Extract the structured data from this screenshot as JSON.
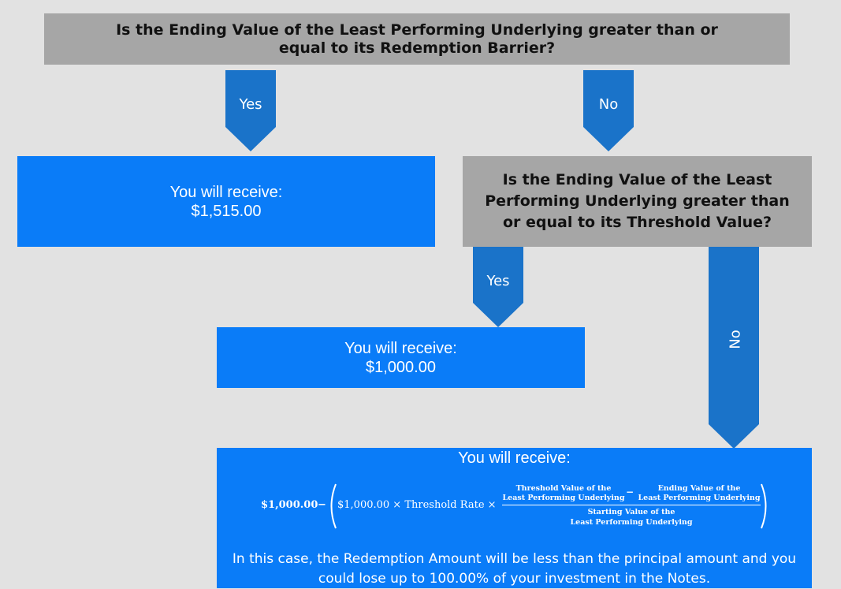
{
  "q1": {
    "text": "Is the Ending Value of the Least Performing Underlying greater than or equal to its Redemption Barrier?"
  },
  "arrows": {
    "yes1": "Yes",
    "no1": "No",
    "yes2": "Yes",
    "no2": "No"
  },
  "outcome1": {
    "line1": "You will receive:",
    "line2": "$1,515.00"
  },
  "q2": {
    "text": "Is the Ending Value of the Least Performing Underlying greater than or equal to its Threshold Value?"
  },
  "outcome2": {
    "line1": "You will receive:",
    "line2": "$1,000.00"
  },
  "outcome3": {
    "line1": "You will receive:",
    "formula": {
      "principal": "$1,000.00",
      "minus": "−",
      "inner": "$1,000.00 × Threshold Rate ×",
      "num_left_1": "Threshold Value of the",
      "num_left_2": "Least Performing Underlying",
      "num_minus": "−",
      "num_right_1": "Ending Value of the",
      "num_right_2": "Least Performing Underlying",
      "den_1": "Starting Value of the",
      "den_2": "Least Performing Underlying"
    },
    "note": "In this case, the Redemption Amount will be less than the principal amount and you could lose up to 100.00% of your investment in the Notes."
  },
  "colors": {
    "background": "#e2e2e2",
    "question_box": "#a6a6a6",
    "outcome_box": "#0a7cf8",
    "arrow": "#1a73c9"
  }
}
